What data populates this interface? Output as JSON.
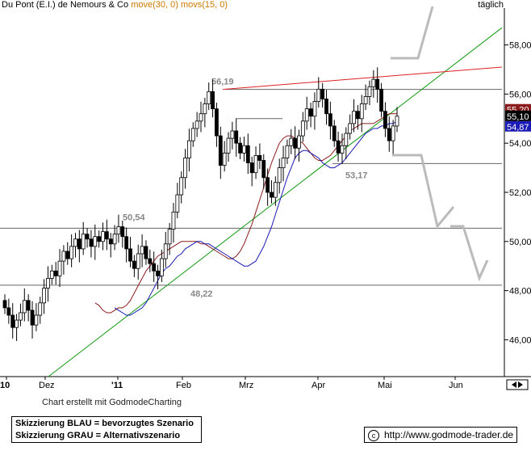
{
  "header": {
    "title": "Du Pont (E.I.) de Nemours & Co",
    "ma1": "move(30, 0)",
    "ma2": "movs(15, 0)",
    "period": "täglich"
  },
  "footer": {
    "credit": "Chart erstellt mit GodmodeCharting",
    "legend_blue": "Skizzierung BLAU = bevorzugtes Szenario",
    "legend_gray": "Skizzierung GRAU = Alternativszenario",
    "copyright_symbol": "c",
    "url": "http://www.godmode-trader.de"
  },
  "colors": {
    "price": "#000000",
    "ma1": "#8b1a1a",
    "ma2": "#1a1ab4",
    "resistance": "#dd2222",
    "trend": "#119911",
    "scenario_gray": "#bbbbbb",
    "header_ma1": "#cc7a00",
    "header_ma2": "#cc7a00"
  },
  "chart_data": {
    "type": "candlestick",
    "ylim": [
      44.5,
      59.5
    ],
    "y_ticks": [
      "58,00",
      "56,00",
      "54,00",
      "52,00",
      "50,00",
      "48,00",
      "46,00"
    ],
    "x_ticks": [
      "10",
      "Dez",
      "'11",
      "Feb",
      "Mrz",
      "Apr",
      "Mai",
      "Jun"
    ],
    "last_price": "55,10",
    "ma2_last": "54,87",
    "ma1_last": "55,20",
    "horizontal_levels": [
      {
        "label": "56,19",
        "value": 56.19
      },
      {
        "label": "53,17",
        "value": 53.17
      },
      {
        "label": "50,54",
        "value": 50.54
      },
      {
        "label": "48,22",
        "value": 48.22
      }
    ],
    "series": [
      {
        "name": "Du Pont (E.I.) de Nemours & Co",
        "values": [
          47.3,
          47.0,
          46.5,
          46.8,
          47.1,
          47.6,
          47.2,
          46.6,
          47.0,
          47.5,
          48.1,
          48.5,
          48.8,
          48.6,
          49.2,
          49.6,
          49.3,
          49.8,
          50.1,
          49.7,
          50.3,
          50.1,
          49.8,
          50.2,
          50.0,
          50.4,
          50.1,
          49.9,
          50.3,
          50.6,
          50.2,
          49.7,
          49.2,
          48.9,
          49.5,
          49.8,
          49.3,
          49.1,
          48.8,
          48.6,
          49.3,
          49.9,
          50.5,
          51.2,
          51.9,
          52.6,
          53.4,
          54.1,
          54.6,
          54.9,
          55.2,
          55.6,
          56.1,
          55.4,
          54.3,
          53.1,
          53.6,
          54.2,
          54.5,
          54.0,
          53.6,
          53.9,
          53.2,
          52.8,
          53.5,
          53.3,
          52.6,
          52.0,
          51.8,
          52.4,
          53.0,
          53.4,
          53.9,
          54.2,
          53.8,
          54.3,
          54.9,
          55.4,
          55.1,
          55.7,
          56.2,
          55.8,
          55.2,
          54.7,
          54.1,
          53.6,
          53.9,
          54.4,
          54.8,
          55.3,
          55.0,
          55.6,
          55.9,
          56.3,
          56.6,
          56.2,
          55.3,
          54.6,
          54.1,
          54.7,
          55.1
        ]
      },
      {
        "name": "move(30, 0)",
        "values": [
          47.5,
          47.4,
          47.2,
          47.1,
          47.1,
          47.2,
          47.3,
          47.3,
          47.4,
          47.6,
          47.9,
          48.2,
          48.5,
          48.8,
          49.0,
          49.2,
          49.4,
          49.5,
          49.6,
          49.7,
          49.8,
          49.9,
          50.0,
          50.0,
          50.0,
          50.0,
          50.0,
          49.9,
          49.9,
          49.8,
          49.7,
          49.6,
          49.5,
          49.4,
          49.3,
          49.3,
          49.4,
          49.6,
          49.9,
          50.3,
          50.7,
          51.2,
          51.7,
          52.2,
          52.7,
          53.2,
          53.6,
          54.0,
          54.2,
          54.3,
          54.3,
          54.2,
          54.1,
          54.0,
          53.8,
          53.6,
          53.4,
          53.3,
          53.3,
          53.4,
          53.5,
          53.7,
          53.9,
          54.1,
          54.3,
          54.5,
          54.6,
          54.7,
          54.8,
          54.8,
          54.8,
          54.8,
          54.9,
          55.0,
          55.1,
          55.2,
          55.2,
          55.2
        ]
      },
      {
        "name": "movs(15, 0)",
        "values": [
          47.3,
          47.2,
          47.1,
          47.0,
          47.0,
          47.1,
          47.2,
          47.3,
          47.5,
          47.8,
          48.1,
          48.4,
          48.7,
          48.9,
          49.0,
          49.2,
          49.4,
          49.5,
          49.7,
          49.8,
          49.9,
          50.0,
          50.0,
          49.9,
          49.9,
          49.8,
          49.7,
          49.6,
          49.5,
          49.4,
          49.3,
          49.2,
          49.1,
          49.0,
          49.0,
          49.1,
          49.2,
          49.5,
          49.8,
          50.2,
          50.6,
          51.1,
          51.6,
          52.1,
          52.6,
          53.0,
          53.4,
          53.6,
          53.7,
          53.7,
          53.6,
          53.5,
          53.4,
          53.2,
          53.1,
          53.0,
          53.0,
          53.1,
          53.2,
          53.4,
          53.6,
          53.8,
          54.0,
          54.2,
          54.4,
          54.5,
          54.6,
          54.6,
          54.7,
          54.7,
          54.8,
          54.8,
          54.9
        ]
      }
    ],
    "trendline_support": {
      "from": [
        0,
        44.5
      ],
      "to": [
        100,
        58.7
      ]
    },
    "trendline_resistance": {
      "from": [
        52,
        56.19
      ],
      "to": [
        100,
        57.1
      ]
    }
  }
}
